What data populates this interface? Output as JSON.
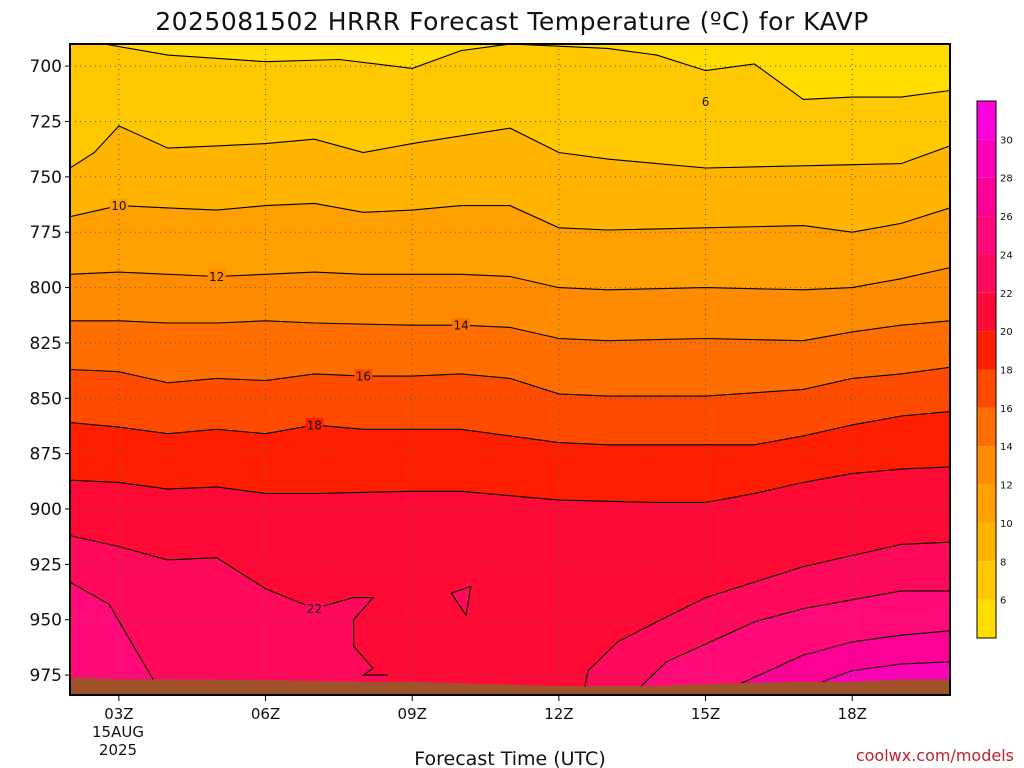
{
  "chart_data": {
    "type": "heatmap",
    "title": "2025081502 HRRR Forecast Temperature (ºC) for KAVP",
    "xlabel": "Forecast Time (UTC)",
    "x_ticks": [
      "03Z",
      "06Z",
      "09Z",
      "12Z",
      "15Z",
      "18Z"
    ],
    "x_tick_hours": [
      3,
      6,
      9,
      12,
      15,
      18
    ],
    "x_date_lines": [
      "15AUG",
      "2025"
    ],
    "xlim_hours": [
      2,
      20
    ],
    "y_ticks": [
      700,
      725,
      750,
      775,
      800,
      825,
      850,
      875,
      900,
      925,
      950,
      975
    ],
    "ylim_hPa": [
      690,
      984
    ],
    "grid": "dotted",
    "colorbar": {
      "ticks": [
        6,
        8,
        10,
        12,
        14,
        16,
        18,
        20,
        22,
        24,
        26,
        28,
        30
      ],
      "bins": [
        {
          "from": 4,
          "to": 6,
          "color": "#ffdd00"
        },
        {
          "from": 6,
          "to": 8,
          "color": "#ffc800"
        },
        {
          "from": 8,
          "to": 10,
          "color": "#ffb400"
        },
        {
          "from": 10,
          "to": 12,
          "color": "#ffa000"
        },
        {
          "from": 12,
          "to": 14,
          "color": "#ff8c00"
        },
        {
          "from": 14,
          "to": 16,
          "color": "#ff6e00"
        },
        {
          "from": 16,
          "to": 18,
          "color": "#ff4b00"
        },
        {
          "from": 18,
          "to": 20,
          "color": "#ff1e00"
        },
        {
          "from": 20,
          "to": 22,
          "color": "#ff0a37"
        },
        {
          "from": 22,
          "to": 24,
          "color": "#ff0a5a"
        },
        {
          "from": 24,
          "to": 26,
          "color": "#ff0a78"
        },
        {
          "from": 26,
          "to": 28,
          "color": "#ff0096"
        },
        {
          "from": 28,
          "to": 30,
          "color": "#ff00b9"
        },
        {
          "from": 30,
          "to": 32,
          "color": "#ff00dc"
        }
      ]
    },
    "contours": [
      {
        "level": 6,
        "label": "6",
        "label_at": [
          15,
          716
        ],
        "points": [
          [
            2,
            690
          ],
          [
            2.7,
            690
          ],
          [
            4,
            695
          ],
          [
            6,
            698
          ],
          [
            7.5,
            697
          ],
          [
            9,
            701
          ],
          [
            10,
            693
          ],
          [
            11,
            690
          ],
          [
            13,
            692
          ],
          [
            14,
            695
          ],
          [
            15,
            702
          ],
          [
            16,
            699
          ],
          [
            17,
            715
          ],
          [
            18,
            714
          ],
          [
            19,
            714
          ],
          [
            20,
            711
          ]
        ]
      },
      {
        "level": 8,
        "label": "",
        "points": [
          [
            2,
            746
          ],
          [
            2.5,
            739
          ],
          [
            3,
            727
          ],
          [
            4,
            737
          ],
          [
            5,
            736
          ],
          [
            6,
            735
          ],
          [
            7,
            733
          ],
          [
            8,
            739
          ],
          [
            9,
            735
          ],
          [
            11,
            728
          ],
          [
            12,
            739
          ],
          [
            13,
            742
          ],
          [
            15,
            746
          ],
          [
            17,
            745
          ],
          [
            19,
            744
          ],
          [
            20,
            736
          ]
        ]
      },
      {
        "level": 10,
        "label": "10",
        "label_at": [
          3,
          763
        ],
        "points": [
          [
            2,
            768
          ],
          [
            3,
            763
          ],
          [
            4,
            764
          ],
          [
            5,
            765
          ],
          [
            6,
            763
          ],
          [
            7,
            762
          ],
          [
            8,
            766
          ],
          [
            9,
            765
          ],
          [
            10,
            763
          ],
          [
            11,
            763
          ],
          [
            12,
            773
          ],
          [
            13,
            774
          ],
          [
            15,
            773
          ],
          [
            17,
            772
          ],
          [
            18,
            775
          ],
          [
            19,
            771
          ],
          [
            20,
            764
          ]
        ]
      },
      {
        "level": 12,
        "label": "12",
        "label_at": [
          5,
          795
        ],
        "points": [
          [
            2,
            794
          ],
          [
            3,
            793
          ],
          [
            5,
            795
          ],
          [
            6,
            794
          ],
          [
            7,
            793
          ],
          [
            8,
            794
          ],
          [
            9,
            794
          ],
          [
            10,
            794
          ],
          [
            11,
            795
          ],
          [
            12,
            800
          ],
          [
            13,
            801
          ],
          [
            15,
            800
          ],
          [
            17,
            801
          ],
          [
            18,
            800
          ],
          [
            19,
            796
          ],
          [
            20,
            791
          ]
        ]
      },
      {
        "level": 14,
        "label": "14",
        "label_at": [
          10,
          817
        ],
        "points": [
          [
            2,
            815
          ],
          [
            3,
            815
          ],
          [
            4,
            816
          ],
          [
            5,
            816
          ],
          [
            6,
            815
          ],
          [
            7,
            816
          ],
          [
            9,
            817
          ],
          [
            10,
            817
          ],
          [
            11,
            818
          ],
          [
            12,
            823
          ],
          [
            13,
            824
          ],
          [
            15,
            823
          ],
          [
            17,
            824
          ],
          [
            18,
            820
          ],
          [
            19,
            817
          ],
          [
            20,
            815
          ]
        ]
      },
      {
        "level": 16,
        "label": "16",
        "label_at": [
          8,
          840
        ],
        "points": [
          [
            2,
            837
          ],
          [
            3,
            838
          ],
          [
            4,
            843
          ],
          [
            5,
            841
          ],
          [
            6,
            842
          ],
          [
            7,
            839
          ],
          [
            8,
            840
          ],
          [
            9,
            840
          ],
          [
            10,
            839
          ],
          [
            11,
            841
          ],
          [
            12,
            848
          ],
          [
            13,
            849
          ],
          [
            15,
            849
          ],
          [
            17,
            846
          ],
          [
            18,
            841
          ],
          [
            19,
            839
          ],
          [
            20,
            836
          ]
        ]
      },
      {
        "level": 18,
        "label": "18",
        "label_at": [
          7,
          862
        ],
        "points": [
          [
            2,
            861
          ],
          [
            3,
            863
          ],
          [
            4,
            866
          ],
          [
            5,
            864
          ],
          [
            6,
            866
          ],
          [
            7,
            862
          ],
          [
            8,
            864
          ],
          [
            9,
            864
          ],
          [
            10,
            864
          ],
          [
            11,
            867
          ],
          [
            12,
            870
          ],
          [
            13,
            871
          ],
          [
            15,
            871
          ],
          [
            16,
            871
          ],
          [
            17,
            867
          ],
          [
            18,
            862
          ],
          [
            19,
            858
          ],
          [
            20,
            856
          ]
        ]
      },
      {
        "level": 20,
        "label": "",
        "points": [
          [
            2,
            887
          ],
          [
            3,
            888
          ],
          [
            4,
            891
          ],
          [
            5,
            890
          ],
          [
            6,
            893
          ],
          [
            7,
            893
          ],
          [
            9,
            892
          ],
          [
            10,
            892
          ],
          [
            11,
            894
          ],
          [
            12,
            896
          ],
          [
            14,
            897
          ],
          [
            15,
            897
          ],
          [
            16,
            893
          ],
          [
            17,
            888
          ],
          [
            18,
            884
          ],
          [
            19,
            882
          ],
          [
            20,
            881
          ]
        ]
      },
      {
        "level": 22,
        "label": "22",
        "label_at": [
          7,
          945
        ],
        "points": [
          [
            2,
            912
          ],
          [
            3,
            917
          ],
          [
            4,
            923
          ],
          [
            5,
            922
          ],
          [
            6,
            936
          ],
          [
            7,
            945
          ],
          [
            7.8,
            940
          ],
          [
            8.2,
            940
          ],
          [
            7.8,
            950
          ],
          [
            7.8,
            962
          ],
          [
            8.2,
            972
          ],
          [
            8,
            975
          ],
          [
            8.5,
            975
          ]
        ]
      },
      {
        "level": 22,
        "label": "",
        "points": [
          [
            9.8,
            938
          ],
          [
            10.2,
            935
          ],
          [
            10.1,
            948
          ],
          [
            9.8,
            938
          ]
        ]
      },
      {
        "level": 22,
        "label": "",
        "points": [
          [
            12.5,
            984
          ],
          [
            12.6,
            973
          ],
          [
            13.2,
            960
          ],
          [
            14,
            951
          ],
          [
            15,
            940
          ],
          [
            16,
            933
          ],
          [
            17,
            926
          ],
          [
            18,
            921
          ],
          [
            19,
            916
          ],
          [
            20,
            915
          ]
        ]
      },
      {
        "level": 24,
        "label": "",
        "points": [
          [
            2,
            933
          ],
          [
            2.8,
            943
          ],
          [
            3.3,
            962
          ],
          [
            3.7,
            977
          ]
        ]
      },
      {
        "level": 24,
        "label": "",
        "points": [
          [
            13.5,
            984
          ],
          [
            14.2,
            969
          ],
          [
            15,
            961
          ],
          [
            16,
            951
          ],
          [
            17,
            945
          ],
          [
            18,
            941
          ],
          [
            19,
            937
          ],
          [
            20,
            937
          ]
        ]
      },
      {
        "level": 26,
        "label": "",
        "points": [
          [
            15.2,
            984
          ],
          [
            16,
            976
          ],
          [
            17,
            966
          ],
          [
            18,
            960
          ],
          [
            19,
            957
          ],
          [
            20,
            955
          ]
        ]
      },
      {
        "level": 28,
        "label": "",
        "points": [
          [
            16.8,
            984
          ],
          [
            17.5,
            977
          ],
          [
            18,
            973
          ],
          [
            19,
            970
          ],
          [
            20,
            969
          ]
        ]
      },
      {
        "level": 30,
        "label": "",
        "points": [
          [
            18.5,
            984
          ],
          [
            19.2,
            980
          ],
          [
            20,
            979
          ]
        ]
      }
    ],
    "ground": {
      "color": "#a0522d",
      "pressure_top": [
        [
          2,
          976
        ],
        [
          3,
          977
        ],
        [
          5,
          977
        ],
        [
          8,
          978
        ],
        [
          9,
          978
        ],
        [
          12,
          980
        ],
        [
          14,
          980
        ],
        [
          15,
          979
        ],
        [
          17,
          978
        ],
        [
          18,
          978
        ],
        [
          19,
          977
        ],
        [
          20,
          977
        ]
      ]
    }
  },
  "credit": "coolwx.com/models"
}
